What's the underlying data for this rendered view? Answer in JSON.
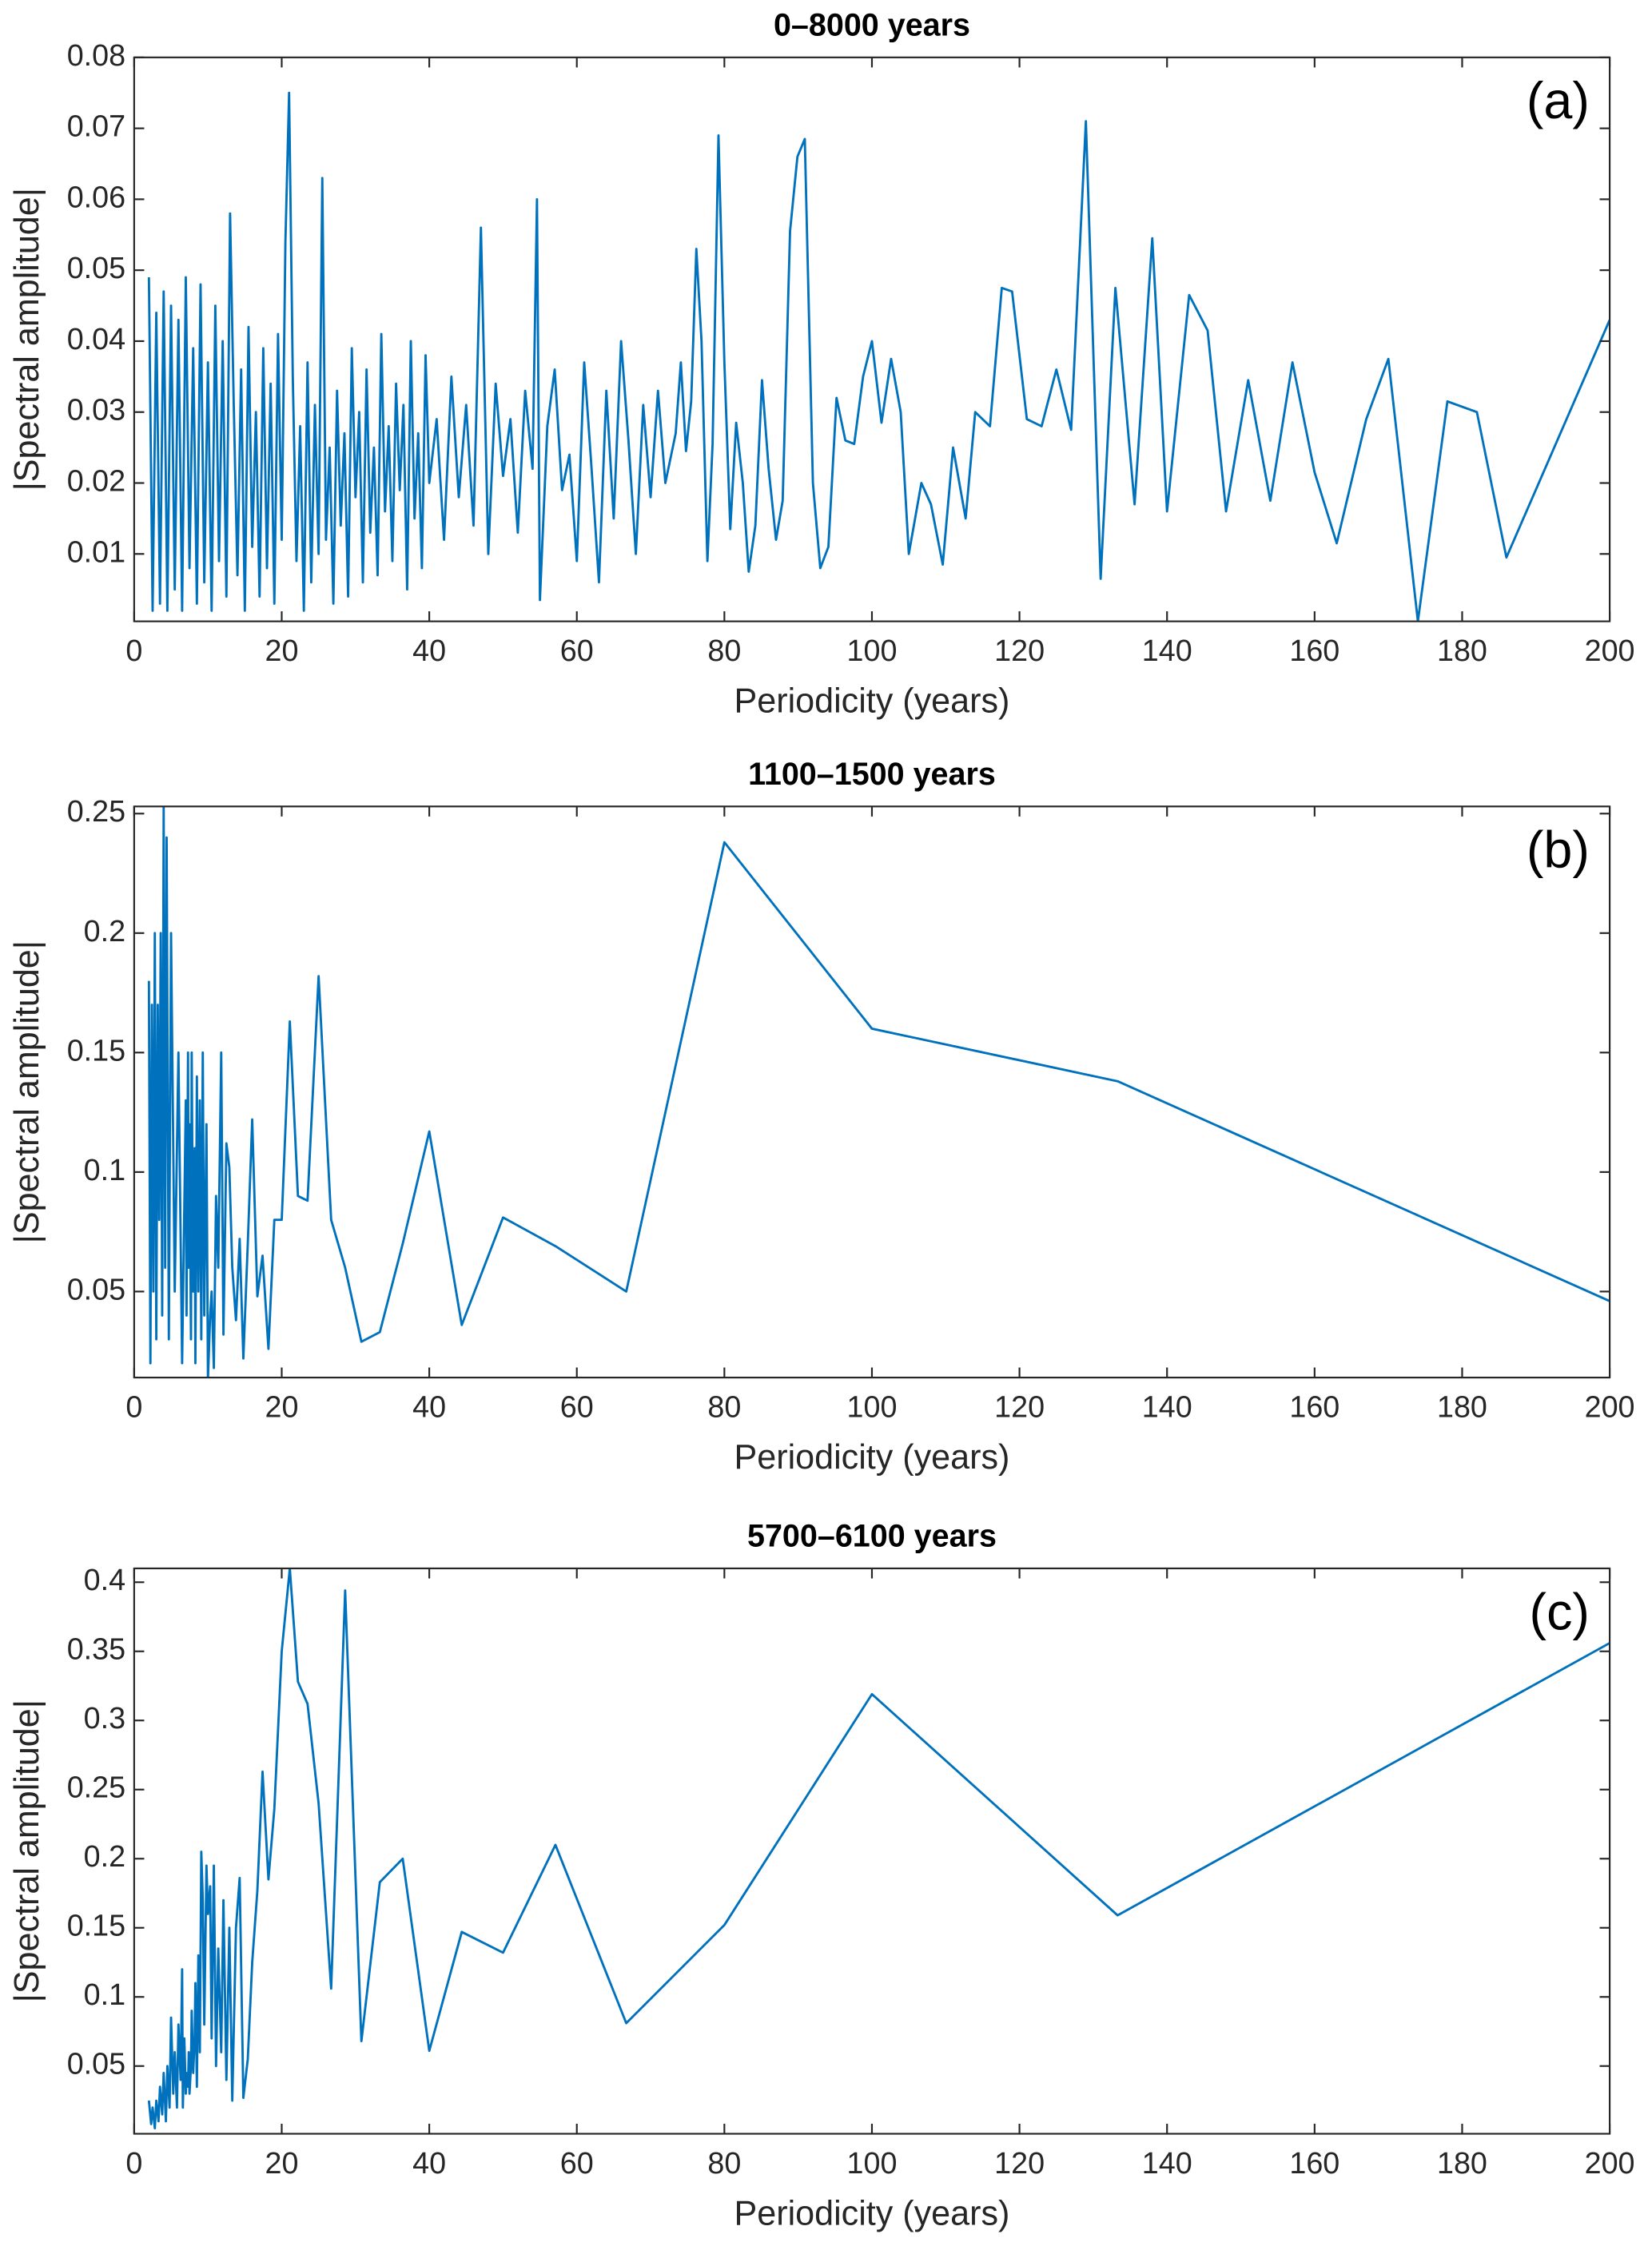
{
  "chart_data": [
    {
      "type": "line",
      "title": "0–8000 years",
      "annotation": "(a)",
      "xlabel": "Periodicity (years)",
      "ylabel": "|Spectral amplitude|",
      "xlim": [
        0,
        200
      ],
      "xticks": [
        0,
        20,
        40,
        60,
        80,
        100,
        120,
        140,
        160,
        180,
        200
      ],
      "ylim": [
        0.0005,
        0.08
      ],
      "yticks": [
        0.01,
        0.02,
        0.03,
        0.04,
        0.05,
        0.06,
        0.07,
        0.08
      ],
      "x": [
        200,
        186,
        182,
        178,
        174,
        170,
        167,
        163,
        160,
        157,
        154,
        151,
        148,
        145.5,
        143,
        140,
        138,
        135.6,
        133,
        131,
        129,
        127,
        125,
        123,
        121,
        119,
        117.6,
        116,
        114,
        112.7,
        111,
        109.6,
        108,
        106.7,
        105,
        103.9,
        102.6,
        101.3,
        100,
        98.8,
        97.6,
        96.4,
        95.2,
        94.1,
        93,
        92,
        90.9,
        89.9,
        88.9,
        87.9,
        87,
        86,
        85.1,
        84.2,
        83.3,
        82.5,
        81.6,
        80.8,
        80,
        79.2,
        78.4,
        77.7,
        76.9,
        76.2,
        75.5,
        74.8,
        74.1,
        73.4,
        72,
        71,
        70,
        69,
        68,
        67,
        66,
        65,
        64,
        63,
        62,
        61,
        60,
        59,
        58,
        57,
        56,
        55,
        54.6,
        54,
        53,
        52,
        51,
        50,
        49,
        48,
        47,
        46,
        45,
        44,
        43,
        42,
        41,
        40,
        39.5,
        39,
        38.5,
        38,
        37.5,
        37,
        36.5,
        36,
        35.5,
        35,
        34.5,
        34,
        33.5,
        33,
        32.5,
        32,
        31.5,
        31,
        30.5,
        30,
        29.5,
        29,
        28.5,
        28,
        27.5,
        27,
        26.5,
        26,
        25.5,
        25,
        24.5,
        24,
        23.5,
        23,
        22.5,
        22,
        21.5,
        21,
        20.5,
        20,
        19.5,
        19,
        18.5,
        18,
        17.5,
        17,
        16.5,
        16,
        15.5,
        15,
        14.5,
        14,
        13.5,
        13,
        12.5,
        12,
        11.5,
        11,
        10.5,
        10,
        9.5,
        9,
        8.5,
        8,
        7.5,
        7,
        6.5,
        6,
        5.5,
        5,
        4.5,
        4,
        3.5,
        3,
        2.5,
        2
      ],
      "series": [
        {
          "color": "#0072bd",
          "values": [
            0.043,
            0.0095,
            0.03,
            0.0315,
            0.0005,
            0.0375,
            0.029,
            0.0115,
            0.0215,
            0.037,
            0.0175,
            0.0345,
            0.016,
            0.0415,
            0.0465,
            0.016,
            0.0545,
            0.017,
            0.0475,
            0.0065,
            0.071,
            0.0275,
            0.036,
            0.028,
            0.029,
            0.047,
            0.0475,
            0.028,
            0.03,
            0.015,
            0.025,
            0.0085,
            0.017,
            0.02,
            0.01,
            0.03,
            0.0375,
            0.0285,
            0.04,
            0.035,
            0.0255,
            0.026,
            0.032,
            0.011,
            0.008,
            0.02,
            0.0685,
            0.066,
            0.0555,
            0.0175,
            0.012,
            0.022,
            0.0345,
            0.014,
            0.0075,
            0.02,
            0.0285,
            0.0135,
            0.037,
            0.069,
            0.0255,
            0.009,
            0.04,
            0.053,
            0.0315,
            0.0245,
            0.037,
            0.027,
            0.02,
            0.033,
            0.018,
            0.031,
            0.01,
            0.026,
            0.04,
            0.015,
            0.033,
            0.006,
            0.022,
            0.037,
            0.009,
            0.024,
            0.019,
            0.036,
            0.028,
            0.0035,
            0.06,
            0.022,
            0.033,
            0.013,
            0.029,
            0.021,
            0.034,
            0.01,
            0.056,
            0.014,
            0.031,
            0.018,
            0.035,
            0.012,
            0.029,
            0.02,
            0.038,
            0.008,
            0.027,
            0.015,
            0.04,
            0.005,
            0.031,
            0.019,
            0.034,
            0.009,
            0.028,
            0.016,
            0.041,
            0.007,
            0.025,
            0.013,
            0.036,
            0.006,
            0.03,
            0.018,
            0.039,
            0.004,
            0.027,
            0.014,
            0.033,
            0.003,
            0.025,
            0.012,
            0.063,
            0.01,
            0.031,
            0.006,
            0.037,
            0.002,
            0.028,
            0.009,
            0.035,
            0.075,
            0.054,
            0.012,
            0.041,
            0.003,
            0.034,
            0.008,
            0.039,
            0.004,
            0.03,
            0.011,
            0.042,
            0.002,
            0.036,
            0.007,
            0.031,
            0.058,
            0.004,
            0.04,
            0.009,
            0.045,
            0.002,
            0.037,
            0.006,
            0.048,
            0.003,
            0.039,
            0.008,
            0.049,
            0.002,
            0.043,
            0.005,
            0.045,
            0.002,
            0.047,
            0.003,
            0.044,
            0.002,
            0.049
          ]
        }
      ]
    },
    {
      "type": "line",
      "title": "1100–1500 years",
      "annotation": "(b)",
      "xlabel": "Periodicity (years)",
      "ylabel": "|Spectral amplitude|",
      "xlim": [
        0,
        200
      ],
      "xticks": [
        0,
        20,
        40,
        60,
        80,
        100,
        120,
        140,
        160,
        180,
        200
      ],
      "ylim": [
        0.014,
        0.253
      ],
      "yticks": [
        0.05,
        0.1,
        0.15,
        0.2,
        0.25
      ],
      "x": [
        200,
        133.3,
        100,
        80,
        66.7,
        57.1,
        50,
        44.4,
        40,
        36.4,
        33.3,
        30.8,
        28.6,
        26.7,
        25,
        23.5,
        22.2,
        21.1,
        20,
        19,
        18.2,
        17.4,
        16.7,
        16,
        15.4,
        14.8,
        14.3,
        13.8,
        13.3,
        12.9,
        12.5,
        12.1,
        11.8,
        11.4,
        11.1,
        10.8,
        10.5,
        10.3,
        10,
        9.8,
        9.5,
        9.3,
        9.1,
        8.9,
        8.7,
        8.5,
        8.3,
        8.2,
        8,
        7.8,
        7.7,
        7.5,
        7.4,
        7.3,
        7.1,
        7,
        6.5,
        6,
        5.5,
        5,
        4.7,
        4.4,
        4.2,
        4,
        3.8,
        3.6,
        3.4,
        3.2,
        3,
        2.8,
        2.6,
        2.4,
        2.2,
        2
      ],
      "series": [
        {
          "color": "#0072bd",
          "values": [
            0.046,
            0.138,
            0.16,
            0.238,
            0.05,
            0.069,
            0.081,
            0.036,
            0.117,
            0.07,
            0.033,
            0.029,
            0.06,
            0.08,
            0.182,
            0.088,
            0.09,
            0.163,
            0.08,
            0.08,
            0.026,
            0.065,
            0.048,
            0.122,
            0.07,
            0.022,
            0.072,
            0.038,
            0.06,
            0.102,
            0.112,
            0.032,
            0.15,
            0.06,
            0.09,
            0.018,
            0.05,
            0.04,
            0.013,
            0.12,
            0.04,
            0.15,
            0.03,
            0.13,
            0.05,
            0.14,
            0.02,
            0.11,
            0.05,
            0.15,
            0.03,
            0.12,
            0.06,
            0.15,
            0.04,
            0.13,
            0.02,
            0.15,
            0.05,
            0.2,
            0.03,
            0.24,
            0.06,
            0.253,
            0.04,
            0.2,
            0.08,
            0.17,
            0.03,
            0.2,
            0.05,
            0.17,
            0.02,
            0.18
          ]
        }
      ]
    },
    {
      "type": "line",
      "title": "5700–6100 years",
      "annotation": "(c)",
      "xlabel": "Periodicity (years)",
      "ylabel": "|Spectral amplitude|",
      "xlim": [
        0,
        200
      ],
      "xticks": [
        0,
        20,
        40,
        60,
        80,
        100,
        120,
        140,
        160,
        180,
        200
      ],
      "ylim": [
        0.001,
        0.41
      ],
      "yticks": [
        0.05,
        0.1,
        0.15,
        0.2,
        0.25,
        0.3,
        0.35,
        0.4
      ],
      "x": [
        200,
        133.3,
        100,
        80,
        66.7,
        57.1,
        50,
        44.4,
        40,
        36.4,
        33.3,
        30.8,
        28.6,
        26.7,
        25,
        23.5,
        22.2,
        21.1,
        20,
        19,
        18.2,
        17.4,
        16.7,
        16,
        15.4,
        14.8,
        14.3,
        13.8,
        13.3,
        12.9,
        12.5,
        12.1,
        11.8,
        11.4,
        11.1,
        10.8,
        10.5,
        10.3,
        10,
        9.8,
        9.5,
        9.3,
        9.1,
        8.9,
        8.7,
        8.5,
        8.3,
        8.2,
        8,
        7.8,
        7.7,
        7.5,
        7.4,
        7.3,
        7.1,
        7,
        6.8,
        6.6,
        6.5,
        6.3,
        6,
        5.8,
        5.5,
        5.3,
        5,
        4.8,
        4.5,
        4.3,
        4,
        3.8,
        3.5,
        3.3,
        3,
        2.8,
        2.5,
        2.3,
        2
      ],
      "series": [
        {
          "color": "#0072bd",
          "values": [
            0.356,
            0.159,
            0.319,
            0.152,
            0.081,
            0.21,
            0.132,
            0.147,
            0.061,
            0.2,
            0.183,
            0.068,
            0.394,
            0.106,
            0.24,
            0.312,
            0.328,
            0.41,
            0.35,
            0.236,
            0.185,
            0.263,
            0.177,
            0.125,
            0.055,
            0.027,
            0.186,
            0.15,
            0.025,
            0.15,
            0.04,
            0.17,
            0.06,
            0.135,
            0.05,
            0.195,
            0.07,
            0.18,
            0.16,
            0.195,
            0.08,
            0.17,
            0.205,
            0.06,
            0.13,
            0.035,
            0.11,
            0.07,
            0.045,
            0.09,
            0.05,
            0.03,
            0.06,
            0.035,
            0.045,
            0.03,
            0.07,
            0.02,
            0.12,
            0.04,
            0.08,
            0.02,
            0.06,
            0.03,
            0.085,
            0.02,
            0.05,
            0.01,
            0.045,
            0.015,
            0.035,
            0.01,
            0.025,
            0.005,
            0.02,
            0.008,
            0.025
          ]
        }
      ]
    }
  ]
}
